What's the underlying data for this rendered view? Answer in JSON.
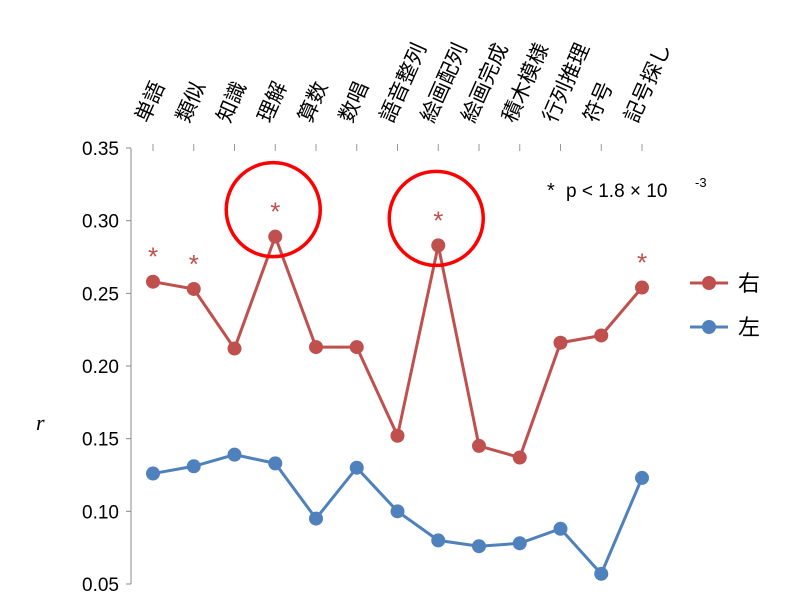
{
  "chart_data": {
    "type": "line",
    "categories": [
      "単語",
      "類似",
      "知識",
      "理解",
      "算数",
      "数唱",
      "語音整列",
      "絵画配列",
      "絵画完成",
      "積木模様",
      "行列推理",
      "符号",
      "記号探し"
    ],
    "series": [
      {
        "name": "右",
        "color": "#C0504D",
        "values": [
          0.258,
          0.253,
          0.212,
          0.289,
          0.213,
          0.213,
          0.152,
          0.283,
          0.145,
          0.137,
          0.216,
          0.221,
          0.254
        ]
      },
      {
        "name": "左",
        "color": "#4F81BD",
        "values": [
          0.126,
          0.131,
          0.139,
          0.133,
          0.095,
          0.13,
          0.1,
          0.08,
          0.076,
          0.078,
          0.088,
          0.057,
          0.123
        ]
      }
    ],
    "significant_categories": [
      "単語",
      "類似",
      "理解",
      "絵画配列",
      "記号探し"
    ],
    "circled_categories": [
      "理解",
      "絵画配列"
    ],
    "significance_marker": "*",
    "annotation": {
      "star": "*",
      "text": "p < 1.8 × 10",
      "exponent": "-3"
    },
    "ylabel": "r",
    "xlabel": "",
    "ylim": [
      0.05,
      0.35
    ],
    "yticks": [
      "0.05",
      "0.10",
      "0.15",
      "0.20",
      "0.25",
      "0.30",
      "0.35"
    ],
    "grid": false,
    "legend_position": "right",
    "x_axis_position": "top",
    "circle_color": "#FF0000"
  }
}
